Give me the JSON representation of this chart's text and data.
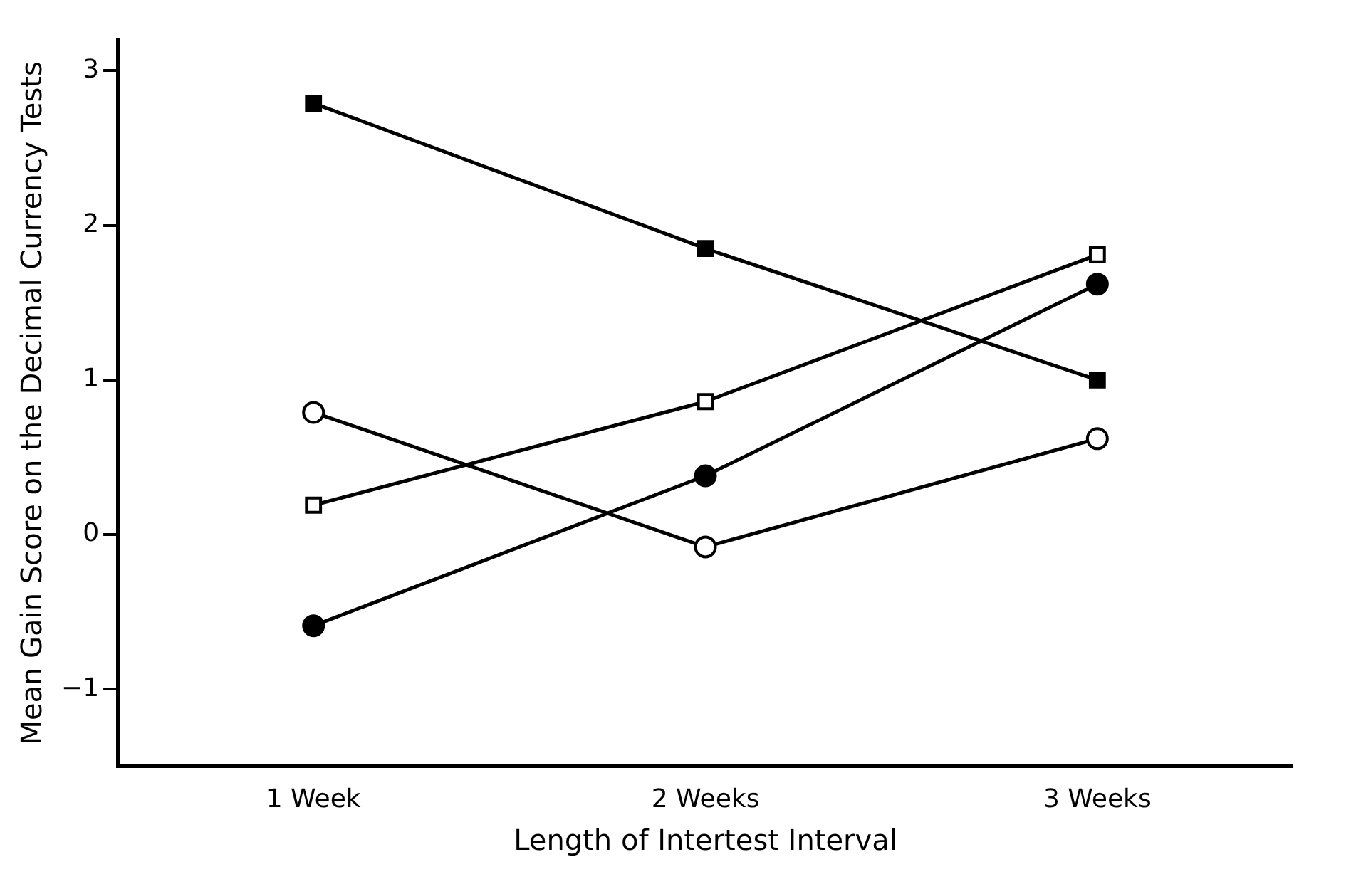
{
  "chart_data": {
    "type": "line",
    "xlabel": "Length of Intertest Interval",
    "ylabel": "Mean Gain Score on the Decimal Currency Tests",
    "categories": [
      "1 Week",
      "2 Weeks",
      "3 Weeks"
    ],
    "series": [
      {
        "color": "#000000",
        "marker": "square",
        "values": [
          2.79,
          1.85,
          1.0
        ]
      },
      {
        "color": "#000000",
        "marker": "square",
        "values": [
          0.19,
          0.86,
          1.81
        ]
      },
      {
        "color": "#000000",
        "marker": "circle",
        "values": [
          -0.59,
          0.38,
          1.62
        ]
      },
      {
        "color": "#000000",
        "marker": "circle",
        "values": [
          0.79,
          -0.08,
          0.62
        ]
      }
    ],
    "ylim": [
      -1.5,
      3.2
    ],
    "yticks": [
      {
        "value": -1,
        "label": "−1"
      },
      0,
      1,
      2,
      3
    ],
    "grid": false,
    "legend": false,
    "line_style": "solid"
  }
}
